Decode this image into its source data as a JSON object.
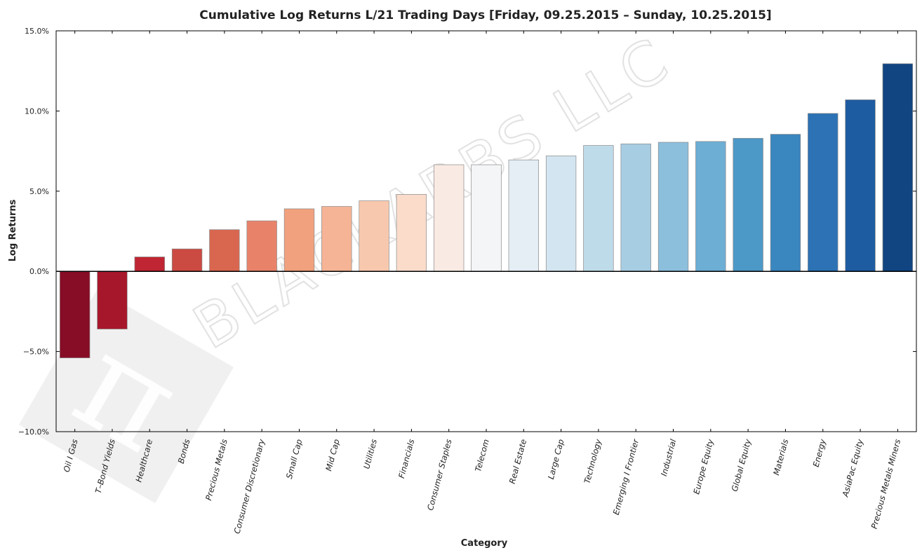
{
  "chart_data": {
    "type": "bar",
    "title": "Cumulative Log Returns L/21 Trading Days  [Friday, 09.25.2015 – Sunday, 10.25.2015]",
    "xlabel": "Category",
    "ylabel": "Log Returns",
    "ylim": [
      -10.0,
      15.0
    ],
    "yticks": [
      15.0,
      10.0,
      5.0,
      0.0,
      -5.0,
      -10.0
    ],
    "ytick_labels": [
      "15.0%",
      "10.0%",
      "5.0%",
      "0.0%",
      "−5.0%",
      "−10.0%"
    ],
    "categories": [
      "Oil I Gas",
      "T–Bond Yields",
      "Healthcare",
      "Bonds",
      "Precious Metals",
      "Consumer Discretionary",
      "Small Cap",
      "Mid Cap",
      "Utilities",
      "Financials",
      "Consumer Staples",
      "Telecom",
      "Real Estate",
      "Large Cap",
      "Technology",
      "Emerging I Frontier",
      "Industrial",
      "Europe Equity",
      "Global Equity",
      "Materials",
      "Energy",
      "AsiaPac Equity",
      "Precious Metals Miners"
    ],
    "values": [
      -5.4,
      -3.6,
      0.9,
      1.4,
      2.6,
      3.15,
      3.9,
      4.05,
      4.4,
      4.8,
      6.65,
      6.65,
      6.95,
      7.2,
      7.85,
      7.95,
      8.05,
      8.1,
      8.3,
      8.55,
      9.85,
      10.7,
      12.95
    ],
    "colors": [
      "#870c26",
      "#a7172b",
      "#bf2532",
      "#cb4a42",
      "#d96750",
      "#e8836a",
      "#f1a17d",
      "#f5b495",
      "#f8c8ae",
      "#fbdccb",
      "#f9ebe3",
      "#f3f5f6",
      "#e4eef4",
      "#d3e5f0",
      "#bedbe9",
      "#a7cde3",
      "#8cbfdc",
      "#6caed4",
      "#4c98c7",
      "#3a86bf",
      "#2c72b4",
      "#1e5ca2",
      "#104581"
    ],
    "grid": false,
    "watermark": "BLACKARBS LLC"
  }
}
